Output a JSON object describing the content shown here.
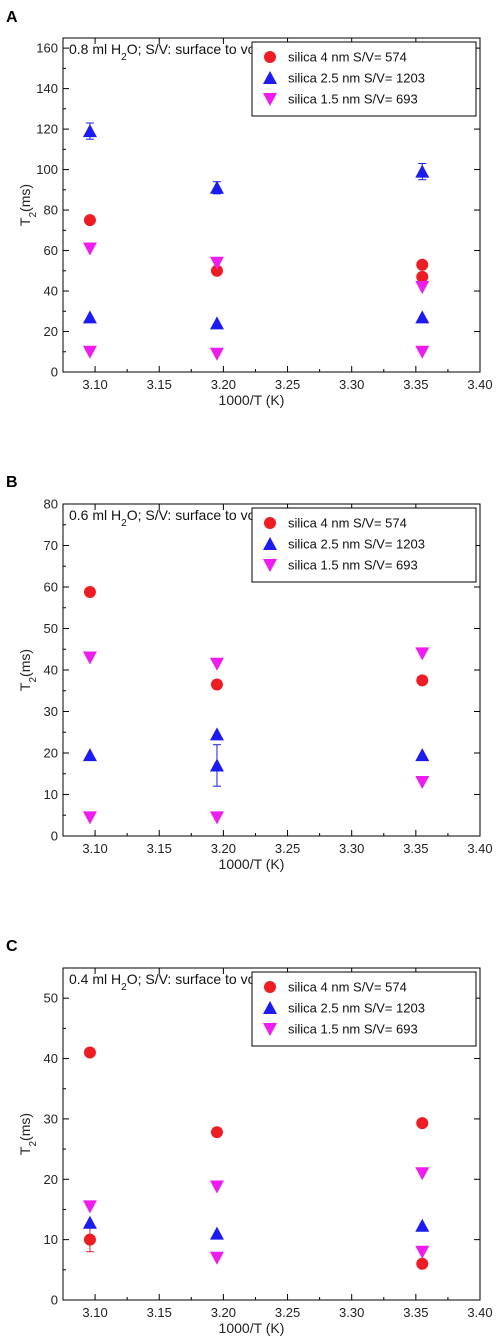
{
  "chart_data": [
    {
      "type": "scatter",
      "panel_letter": "A",
      "title": "0.8 ml H2O; S/V: surface to volume",
      "xlabel": "1000/T (K)",
      "ylabel": "T2(ms)",
      "xlim": [
        3.075,
        3.4
      ],
      "ylim": [
        0,
        165
      ],
      "xticks": [
        3.1,
        3.15,
        3.2,
        3.25,
        3.3,
        3.35,
        3.4
      ],
      "yticks": [
        0,
        20,
        40,
        60,
        80,
        100,
        120,
        140,
        160
      ],
      "legend_position": "top-right",
      "series": [
        {
          "name": "silica 4 nm S/V= 574",
          "marker": "circle",
          "color": "#ee1c24",
          "points": [
            {
              "x": 3.096,
              "y": 75
            },
            {
              "x": 3.195,
              "y": 50
            },
            {
              "x": 3.355,
              "y": 53
            },
            {
              "x": 3.355,
              "y": 47
            }
          ]
        },
        {
          "name": "silica 2.5 nm S/V= 1203",
          "marker": "triangle-up",
          "color": "#1c1cf0",
          "points": [
            {
              "x": 3.096,
              "y": 119,
              "err": 4
            },
            {
              "x": 3.195,
              "y": 91,
              "err": 3
            },
            {
              "x": 3.355,
              "y": 99,
              "err": 4
            },
            {
              "x": 3.096,
              "y": 27
            },
            {
              "x": 3.195,
              "y": 24
            },
            {
              "x": 3.355,
              "y": 27
            }
          ]
        },
        {
          "name": "silica 1.5 nm S/V= 693",
          "marker": "triangle-down",
          "color": "#ee1cee",
          "points": [
            {
              "x": 3.096,
              "y": 61
            },
            {
              "x": 3.195,
              "y": 54
            },
            {
              "x": 3.355,
              "y": 42
            },
            {
              "x": 3.096,
              "y": 10
            },
            {
              "x": 3.195,
              "y": 9
            },
            {
              "x": 3.355,
              "y": 10
            }
          ]
        }
      ]
    },
    {
      "type": "scatter",
      "panel_letter": "B",
      "title": "0.6 ml H2O; S/V: surface to volume",
      "xlabel": "1000/T (K)",
      "ylabel": "T2(ms)",
      "xlim": [
        3.075,
        3.4
      ],
      "ylim": [
        0,
        80
      ],
      "xticks": [
        3.1,
        3.15,
        3.2,
        3.25,
        3.3,
        3.35,
        3.4
      ],
      "yticks": [
        0,
        10,
        20,
        30,
        40,
        50,
        60,
        70,
        80
      ],
      "legend_position": "top-right",
      "series": [
        {
          "name": "silica 4 nm S/V= 574",
          "marker": "circle",
          "color": "#ee1c24",
          "points": [
            {
              "x": 3.096,
              "y": 58.8
            },
            {
              "x": 3.195,
              "y": 36.5
            },
            {
              "x": 3.355,
              "y": 37.5
            }
          ]
        },
        {
          "name": "silica 2.5 nm S/V= 1203",
          "marker": "triangle-up",
          "color": "#1c1cf0",
          "points": [
            {
              "x": 3.096,
              "y": 19.5
            },
            {
              "x": 3.195,
              "y": 24.5
            },
            {
              "x": 3.195,
              "y": 17,
              "err": 5
            },
            {
              "x": 3.355,
              "y": 19.5
            }
          ]
        },
        {
          "name": "silica 1.5 nm S/V= 693",
          "marker": "triangle-down",
          "color": "#ee1cee",
          "points": [
            {
              "x": 3.096,
              "y": 43
            },
            {
              "x": 3.195,
              "y": 41.5
            },
            {
              "x": 3.355,
              "y": 44
            },
            {
              "x": 3.096,
              "y": 4.5
            },
            {
              "x": 3.195,
              "y": 4.5
            },
            {
              "x": 3.355,
              "y": 13
            }
          ]
        }
      ]
    },
    {
      "type": "scatter",
      "panel_letter": "C",
      "title": "0.4 ml H2O; S/V: surface to volume",
      "xlabel": "1000/T (K)",
      "ylabel": "T2(ms)",
      "xlim": [
        3.075,
        3.4
      ],
      "ylim": [
        0,
        55
      ],
      "xticks": [
        3.1,
        3.15,
        3.2,
        3.25,
        3.3,
        3.35,
        3.4
      ],
      "yticks": [
        0,
        10,
        20,
        30,
        40,
        50
      ],
      "legend_position": "top-right",
      "series": [
        {
          "name": "silica 4 nm S/V= 574",
          "marker": "circle",
          "color": "#ee1c24",
          "points": [
            {
              "x": 3.096,
              "y": 41
            },
            {
              "x": 3.195,
              "y": 27.8
            },
            {
              "x": 3.355,
              "y": 29.3
            },
            {
              "x": 3.096,
              "y": 10,
              "err": 2
            },
            {
              "x": 3.355,
              "y": 6
            }
          ]
        },
        {
          "name": "silica 2.5 nm S/V= 1203",
          "marker": "triangle-up",
          "color": "#1c1cf0",
          "points": [
            {
              "x": 3.096,
              "y": 12.8
            },
            {
              "x": 3.195,
              "y": 11
            },
            {
              "x": 3.355,
              "y": 12.3
            }
          ]
        },
        {
          "name": "silica 1.5 nm S/V= 693",
          "marker": "triangle-down",
          "color": "#ee1cee",
          "points": [
            {
              "x": 3.096,
              "y": 15.5
            },
            {
              "x": 3.195,
              "y": 18.8
            },
            {
              "x": 3.355,
              "y": 21
            },
            {
              "x": 3.195,
              "y": 7
            },
            {
              "x": 3.355,
              "y": 8
            }
          ]
        }
      ]
    }
  ]
}
